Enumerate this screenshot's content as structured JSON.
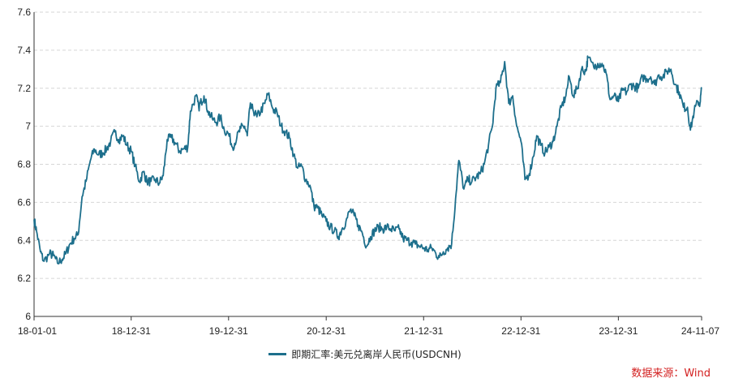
{
  "chart_data": {
    "type": "line",
    "title": "",
    "xlabel": "",
    "ylabel": "",
    "ylim": [
      6,
      7.6
    ],
    "y_ticks": [
      "6",
      "6.2",
      "6.4",
      "6.6",
      "6.8",
      "7",
      "7.2",
      "7.4",
      "7.6"
    ],
    "y_tick_values": [
      6,
      6.2,
      6.4,
      6.6,
      6.8,
      7.0,
      7.2,
      7.4,
      7.6
    ],
    "x_ticks": [
      "18-01-01",
      "18-12-31",
      "19-12-31",
      "20-12-31",
      "21-12-31",
      "22-12-31",
      "23-12-31",
      "24-11-07"
    ],
    "x_tick_dates": [
      "2018-01-01",
      "2018-12-31",
      "2019-12-31",
      "2020-12-31",
      "2021-12-31",
      "2022-12-31",
      "2023-12-31",
      "2024-11-07"
    ],
    "grid": true,
    "legend_position": "bottom-center",
    "series": [
      {
        "name": "即期汇率:美元兑离岸人民币(USDCNH)",
        "color": "#1d6f8c",
        "points": [
          [
            "2018-01-01",
            6.51
          ],
          [
            "2018-01-10",
            6.45
          ],
          [
            "2018-01-25",
            6.34
          ],
          [
            "2018-02-07",
            6.29
          ],
          [
            "2018-02-28",
            6.33
          ],
          [
            "2018-03-15",
            6.32
          ],
          [
            "2018-03-30",
            6.28
          ],
          [
            "2018-04-16",
            6.3
          ],
          [
            "2018-04-30",
            6.33
          ],
          [
            "2018-05-15",
            6.38
          ],
          [
            "2018-05-31",
            6.41
          ],
          [
            "2018-06-15",
            6.43
          ],
          [
            "2018-06-30",
            6.63
          ],
          [
            "2018-07-15",
            6.71
          ],
          [
            "2018-07-31",
            6.82
          ],
          [
            "2018-08-15",
            6.88
          ],
          [
            "2018-08-31",
            6.85
          ],
          [
            "2018-09-15",
            6.86
          ],
          [
            "2018-09-30",
            6.88
          ],
          [
            "2018-10-15",
            6.92
          ],
          [
            "2018-10-31",
            6.97
          ],
          [
            "2018-11-15",
            6.93
          ],
          [
            "2018-11-30",
            6.95
          ],
          [
            "2018-12-15",
            6.9
          ],
          [
            "2018-12-31",
            6.87
          ],
          [
            "2019-01-15",
            6.79
          ],
          [
            "2019-01-31",
            6.71
          ],
          [
            "2019-02-15",
            6.76
          ],
          [
            "2019-02-28",
            6.71
          ],
          [
            "2019-03-15",
            6.71
          ],
          [
            "2019-03-31",
            6.72
          ],
          [
            "2019-04-15",
            6.7
          ],
          [
            "2019-04-30",
            6.74
          ],
          [
            "2019-05-15",
            6.93
          ],
          [
            "2019-05-31",
            6.94
          ],
          [
            "2019-06-15",
            6.91
          ],
          [
            "2019-06-30",
            6.87
          ],
          [
            "2019-07-15",
            6.88
          ],
          [
            "2019-07-31",
            6.89
          ],
          [
            "2019-08-10",
            7.08
          ],
          [
            "2019-08-31",
            7.16
          ],
          [
            "2019-09-10",
            7.1
          ],
          [
            "2019-09-20",
            7.13
          ],
          [
            "2019-09-30",
            7.16
          ],
          [
            "2019-10-15",
            7.08
          ],
          [
            "2019-10-31",
            7.04
          ],
          [
            "2019-11-15",
            7.02
          ],
          [
            "2019-11-30",
            7.05
          ],
          [
            "2019-12-15",
            6.98
          ],
          [
            "2019-12-31",
            6.96
          ],
          [
            "2020-01-15",
            6.89
          ],
          [
            "2020-01-31",
            6.94
          ],
          [
            "2020-02-15",
            6.99
          ],
          [
            "2020-02-29",
            7.0
          ],
          [
            "2020-03-10",
            6.95
          ],
          [
            "2020-03-20",
            7.1
          ],
          [
            "2020-03-31",
            7.09
          ],
          [
            "2020-04-15",
            7.05
          ],
          [
            "2020-04-30",
            7.08
          ],
          [
            "2020-05-15",
            7.12
          ],
          [
            "2020-05-27",
            7.17
          ],
          [
            "2020-06-15",
            7.09
          ],
          [
            "2020-06-30",
            7.07
          ],
          [
            "2020-07-15",
            7.0
          ],
          [
            "2020-07-31",
            6.97
          ],
          [
            "2020-08-15",
            6.94
          ],
          [
            "2020-08-31",
            6.85
          ],
          [
            "2020-09-15",
            6.78
          ],
          [
            "2020-09-30",
            6.79
          ],
          [
            "2020-10-15",
            6.72
          ],
          [
            "2020-10-31",
            6.69
          ],
          [
            "2020-11-15",
            6.58
          ],
          [
            "2020-11-30",
            6.57
          ],
          [
            "2020-12-15",
            6.53
          ],
          [
            "2020-12-31",
            6.5
          ],
          [
            "2021-01-15",
            6.47
          ],
          [
            "2021-01-31",
            6.45
          ],
          [
            "2021-02-15",
            6.42
          ],
          [
            "2021-02-28",
            6.46
          ],
          [
            "2021-03-15",
            6.5
          ],
          [
            "2021-03-31",
            6.56
          ],
          [
            "2021-04-15",
            6.53
          ],
          [
            "2021-04-30",
            6.48
          ],
          [
            "2021-05-15",
            6.44
          ],
          [
            "2021-05-31",
            6.37
          ],
          [
            "2021-06-15",
            6.42
          ],
          [
            "2021-06-30",
            6.45
          ],
          [
            "2021-07-15",
            6.47
          ],
          [
            "2021-07-31",
            6.46
          ],
          [
            "2021-08-15",
            6.47
          ],
          [
            "2021-08-31",
            6.46
          ],
          [
            "2021-09-15",
            6.45
          ],
          [
            "2021-09-30",
            6.46
          ],
          [
            "2021-10-15",
            6.41
          ],
          [
            "2021-10-31",
            6.4
          ],
          [
            "2021-11-15",
            6.39
          ],
          [
            "2021-11-30",
            6.38
          ],
          [
            "2021-12-15",
            6.37
          ],
          [
            "2021-12-31",
            6.36
          ],
          [
            "2022-01-15",
            6.35
          ],
          [
            "2022-01-31",
            6.36
          ],
          [
            "2022-02-15",
            6.33
          ],
          [
            "2022-02-28",
            6.31
          ],
          [
            "2022-03-15",
            6.34
          ],
          [
            "2022-03-31",
            6.36
          ],
          [
            "2022-04-15",
            6.38
          ],
          [
            "2022-04-30",
            6.62
          ],
          [
            "2022-05-12",
            6.82
          ],
          [
            "2022-05-31",
            6.67
          ],
          [
            "2022-06-15",
            6.72
          ],
          [
            "2022-06-30",
            6.71
          ],
          [
            "2022-07-15",
            6.73
          ],
          [
            "2022-07-31",
            6.75
          ],
          [
            "2022-08-15",
            6.8
          ],
          [
            "2022-08-31",
            6.9
          ],
          [
            "2022-09-15",
            7.0
          ],
          [
            "2022-09-28",
            7.2
          ],
          [
            "2022-10-15",
            7.23
          ],
          [
            "2022-10-31",
            7.34
          ],
          [
            "2022-11-15",
            7.12
          ],
          [
            "2022-11-30",
            7.16
          ],
          [
            "2022-12-15",
            7.0
          ],
          [
            "2022-12-31",
            6.92
          ],
          [
            "2023-01-15",
            6.72
          ],
          [
            "2023-01-31",
            6.75
          ],
          [
            "2023-02-15",
            6.84
          ],
          [
            "2023-02-28",
            6.95
          ],
          [
            "2023-03-15",
            6.9
          ],
          [
            "2023-03-31",
            6.86
          ],
          [
            "2023-04-15",
            6.89
          ],
          [
            "2023-04-30",
            6.92
          ],
          [
            "2023-05-15",
            7.0
          ],
          [
            "2023-05-31",
            7.1
          ],
          [
            "2023-06-15",
            7.15
          ],
          [
            "2023-06-30",
            7.26
          ],
          [
            "2023-07-15",
            7.16
          ],
          [
            "2023-07-31",
            7.2
          ],
          [
            "2023-08-15",
            7.3
          ],
          [
            "2023-08-31",
            7.29
          ],
          [
            "2023-09-08",
            7.36
          ],
          [
            "2023-09-30",
            7.31
          ],
          [
            "2023-10-15",
            7.33
          ],
          [
            "2023-10-31",
            7.33
          ],
          [
            "2023-11-15",
            7.28
          ],
          [
            "2023-11-30",
            7.14
          ],
          [
            "2023-12-15",
            7.16
          ],
          [
            "2023-12-31",
            7.13
          ],
          [
            "2024-01-15",
            7.19
          ],
          [
            "2024-01-31",
            7.18
          ],
          [
            "2024-02-15",
            7.22
          ],
          [
            "2024-02-29",
            7.21
          ],
          [
            "2024-03-15",
            7.2
          ],
          [
            "2024-03-31",
            7.26
          ],
          [
            "2024-04-15",
            7.25
          ],
          [
            "2024-04-30",
            7.26
          ],
          [
            "2024-05-15",
            7.22
          ],
          [
            "2024-05-31",
            7.27
          ],
          [
            "2024-06-15",
            7.26
          ],
          [
            "2024-06-30",
            7.29
          ],
          [
            "2024-07-15",
            7.3
          ],
          [
            "2024-07-31",
            7.22
          ],
          [
            "2024-08-15",
            7.18
          ],
          [
            "2024-08-31",
            7.1
          ],
          [
            "2024-09-15",
            7.1
          ],
          [
            "2024-09-26",
            6.98
          ],
          [
            "2024-10-10",
            7.08
          ],
          [
            "2024-10-25",
            7.13
          ],
          [
            "2024-11-01",
            7.12
          ],
          [
            "2024-11-07",
            7.2
          ]
        ]
      }
    ]
  },
  "legend": {
    "label": "即期汇率:美元兑离岸人民币(USDCNH)"
  },
  "source": "数据来源：Wind"
}
